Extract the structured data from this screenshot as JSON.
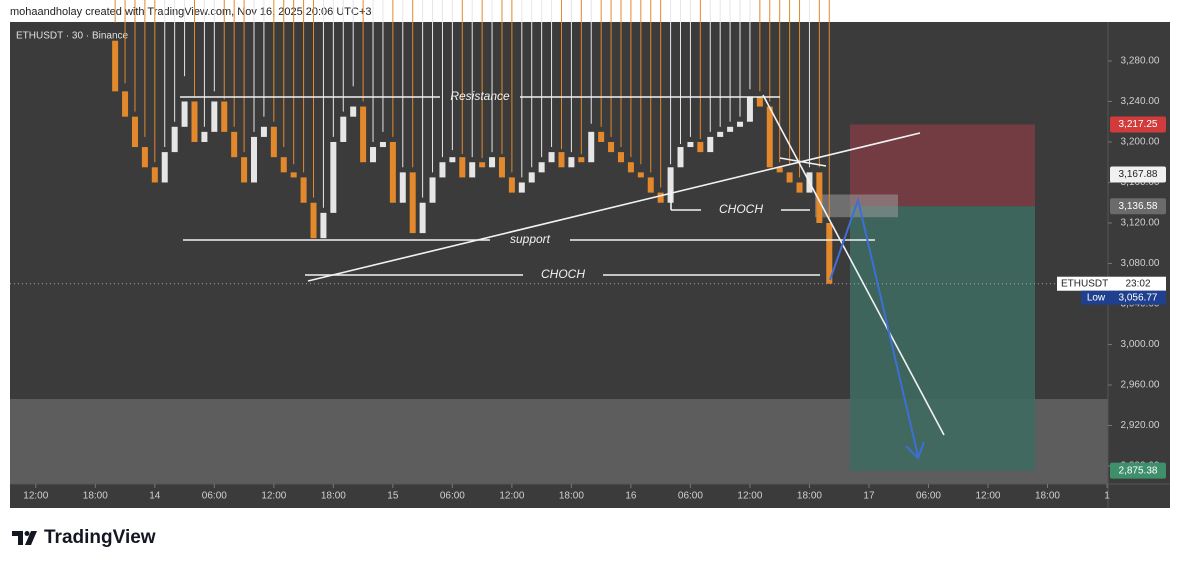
{
  "header": "mohaandholay created with TradingView.com, Nov 16, 2025 20:06 UTC+3",
  "footer": "TradingView",
  "chart_data": {
    "type": "candlestick",
    "title": "ETHUSDT · 30 · Binance",
    "up_color": "#e6e6e6",
    "down_color": "#e3892c",
    "xlim": [
      -2.6,
      108.1
    ],
    "ylim": [
      2862.2,
      3318.5
    ],
    "xticks": [
      {
        "value": 0,
        "label": "12:00"
      },
      {
        "value": 6,
        "label": "18:00"
      },
      {
        "value": 12,
        "label": "14"
      },
      {
        "value": 18,
        "label": "06:00"
      },
      {
        "value": 24,
        "label": "12:00"
      },
      {
        "value": 30,
        "label": "18:00"
      },
      {
        "value": 36,
        "label": "15"
      },
      {
        "value": 42,
        "label": "06:00"
      },
      {
        "value": 48,
        "label": "12:00"
      },
      {
        "value": 54,
        "label": "18:00"
      },
      {
        "value": 60,
        "label": "16"
      },
      {
        "value": 66,
        "label": "06:00"
      },
      {
        "value": 72,
        "label": "12:00"
      },
      {
        "value": 78,
        "label": "18:00"
      },
      {
        "value": 84,
        "label": "17"
      },
      {
        "value": 90,
        "label": "06:00"
      },
      {
        "value": 96,
        "label": "12:00"
      },
      {
        "value": 102,
        "label": "18:00"
      },
      {
        "value": 108,
        "label": "1"
      }
    ],
    "yticks": [
      {
        "value": 3280,
        "label": "3,280.00"
      },
      {
        "value": 3240,
        "label": "3,240.00"
      },
      {
        "value": 3200,
        "label": "3,200.00"
      },
      {
        "value": 3160,
        "label": "3,160.00"
      },
      {
        "value": 3120,
        "label": "3,120.00"
      },
      {
        "value": 3080,
        "label": "3,080.00"
      },
      {
        "value": 3040,
        "label": "3,040.00"
      },
      {
        "value": 3000,
        "label": "3,000.00"
      },
      {
        "value": 2960,
        "label": "2,960.00"
      },
      {
        "value": 2920,
        "label": "2,920.00"
      },
      {
        "value": 2880,
        "label": "2,880.00"
      }
    ],
    "x": [
      8,
      9,
      10,
      11,
      12,
      13,
      14,
      15,
      16,
      17,
      18,
      19,
      20,
      21,
      22,
      23,
      24,
      25,
      26,
      27,
      28,
      29,
      30,
      31,
      32,
      33,
      34,
      35,
      36,
      37,
      38,
      39,
      40,
      41,
      42,
      43,
      44,
      45,
      46,
      47,
      48,
      49,
      50,
      51,
      52,
      53,
      54,
      55,
      56,
      57,
      58,
      59,
      60,
      61,
      62,
      63,
      64,
      65,
      66,
      67,
      68,
      69,
      70,
      71,
      72,
      73,
      74,
      75,
      76,
      77,
      78,
      79,
      80
    ],
    "open": [
      3300,
      3250,
      3225,
      3195,
      3175,
      3160,
      3190,
      3215,
      3240,
      3200,
      3210,
      3240,
      3210,
      3185,
      3160,
      3205,
      3215,
      3185,
      3170,
      3165,
      3140,
      3105,
      3130,
      3200,
      3225,
      3235,
      3180,
      3195,
      3200,
      3140,
      3170,
      3110,
      3140,
      3165,
      3180,
      3185,
      3165,
      3180,
      3175,
      3185,
      3165,
      3150,
      3160,
      3170,
      3180,
      3190,
      3175,
      3185,
      3180,
      3210,
      3200,
      3190,
      3180,
      3170,
      3165,
      3150,
      3140,
      3175,
      3195,
      3200,
      3190,
      3205,
      3210,
      3215,
      3220,
      3245,
      3235,
      3175,
      3170,
      3160,
      3150,
      3170,
      3120
    ],
    "high": [
      3318,
      3258,
      3230,
      3205,
      3180,
      3195,
      3220,
      3265,
      3245,
      3215,
      3250,
      3242,
      3215,
      3190,
      3210,
      3225,
      3220,
      3195,
      3178,
      3170,
      3145,
      3135,
      3205,
      3230,
      3255,
      3240,
      3200,
      3210,
      3205,
      3175,
      3175,
      3145,
      3170,
      3185,
      3192,
      3188,
      3185,
      3184,
      3190,
      3188,
      3170,
      3165,
      3175,
      3185,
      3195,
      3193,
      3190,
      3188,
      3218,
      3215,
      3205,
      3195,
      3185,
      3178,
      3170,
      3155,
      3178,
      3198,
      3205,
      3203,
      3210,
      3215,
      3220,
      3225,
      3252,
      3250,
      3240,
      3180,
      3178,
      3165,
      3175,
      3175,
      3125
    ],
    "low": {
      "value": 3056.77,
      "label": "3,056.77"
    },
    "close": [
      3250,
      3225,
      3195,
      3175,
      3160,
      3190,
      3215,
      3240,
      3200,
      3210,
      3240,
      3210,
      3185,
      3160,
      3205,
      3215,
      3185,
      3170,
      3165,
      3140,
      3105,
      3130,
      3200,
      3225,
      3235,
      3180,
      3195,
      3200,
      3140,
      3170,
      3110,
      3140,
      3165,
      3180,
      3185,
      3165,
      3180,
      3175,
      3185,
      3165,
      3150,
      3160,
      3170,
      3180,
      3190,
      3175,
      3185,
      3180,
      3210,
      3200,
      3190,
      3180,
      3170,
      3165,
      3150,
      3140,
      3175,
      3195,
      3200,
      3190,
      3205,
      3210,
      3215,
      3220,
      3245,
      3235,
      3175,
      3170,
      3160,
      3150,
      3170,
      3120,
      3060
    ],
    "annotations": [
      "Resistance",
      "support",
      "CHOCH",
      "CHOCH"
    ],
    "position": {
      "stop": 3217.25,
      "stop_label": "3,217.25",
      "entry": 3136.58,
      "entry_label": "3,136.58",
      "target": 2875.38,
      "target_label": "2,875.38"
    },
    "marker": {
      "value": 3167.88,
      "label": "3,167.88"
    },
    "symbol": "ETHUSDT",
    "countdown": "23:02",
    "low_text": "Low"
  }
}
